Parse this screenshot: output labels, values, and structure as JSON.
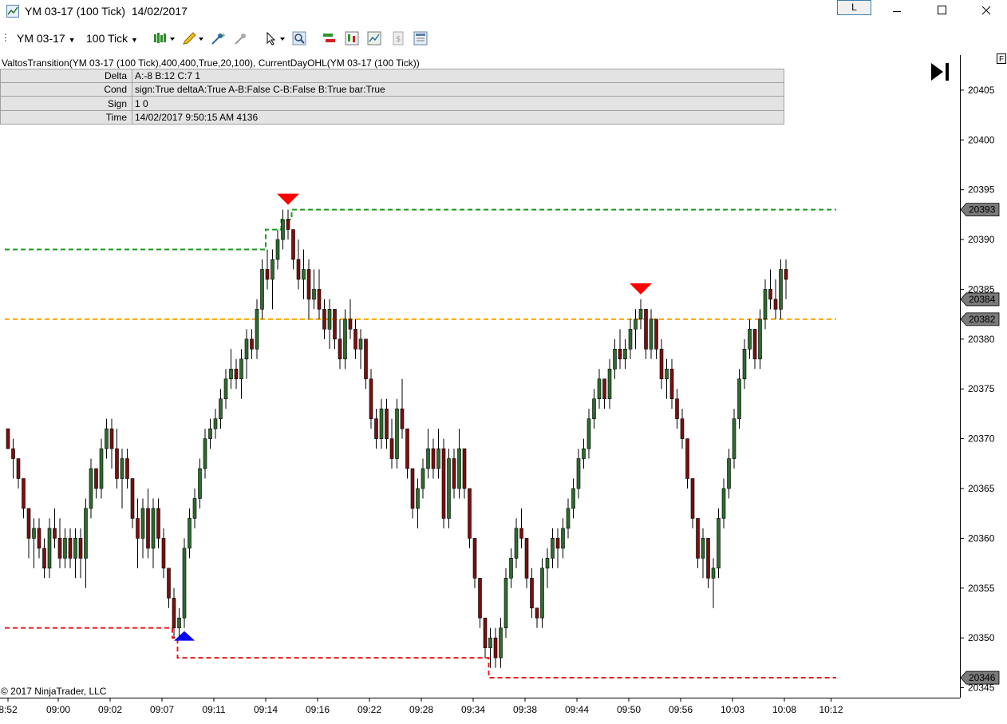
{
  "window": {
    "title": "YM 03-17 (100 Tick)  14/02/2017",
    "button_l": "L"
  },
  "toolbar": {
    "instrument": "YM 03-17",
    "interval": "100 Tick"
  },
  "chart": {
    "indicator_header": "ValtosTransition(YM 03-17 (100 Tick),400,400,True,20,100), CurrentDayOHL(YM 03-17 (100 Tick))",
    "info_table": [
      {
        "label": "Delta",
        "value": "A:-8 B:12 C:7 1"
      },
      {
        "label": "Cond",
        "value": "sign:True deltaA:True A-B:False C-B:False B:True bar:True"
      },
      {
        "label": "Sign",
        "value": "1 0"
      },
      {
        "label": "Time",
        "value": "14/02/2017 9:50:15 AM 4136"
      }
    ],
    "copyright": "© 2017 NinjaTrader, LLC",
    "corner_label": "F",
    "colors": {
      "up": "#2e6b2e",
      "down": "#7a0f0f",
      "high": "#1a9a1a",
      "mid": "#ffa500",
      "low": "#e81a1a",
      "down_arrow": "#ff0000",
      "up_arrow": "#0000ff"
    }
  },
  "chart_data": {
    "type": "candlestick",
    "ylim": [
      20344,
      20409
    ],
    "y_ticks": [
      20345,
      20350,
      20355,
      20360,
      20365,
      20370,
      20375,
      20380,
      20385,
      20390,
      20395,
      20400,
      20405
    ],
    "x_tick_labels": [
      "8:52",
      "09:00",
      "09:02",
      "09:07",
      "09:11",
      "09:14",
      "09:16",
      "09:22",
      "09:28",
      "09:34",
      "09:38",
      "09:44",
      "09:50",
      "09:56",
      "10:03",
      "10:08",
      "10:12"
    ],
    "price_markers": [
      20393,
      20384,
      20382,
      20346
    ],
    "levels": [
      {
        "name": "current-day-high",
        "segments": [
          [
            0,
            50,
            20389
          ],
          [
            50,
            53,
            20391
          ],
          [
            53,
            55,
            20392
          ],
          [
            55,
            160,
            20393
          ]
        ]
      },
      {
        "name": "current-day-open",
        "segments": [
          [
            0,
            160,
            20382
          ]
        ]
      },
      {
        "name": "current-day-low",
        "segments": [
          [
            0,
            32,
            20351
          ],
          [
            32,
            33,
            20350
          ],
          [
            33,
            93,
            20348
          ],
          [
            93,
            160,
            20346
          ]
        ]
      }
    ],
    "markers": [
      {
        "type": "down",
        "bar": 54
      },
      {
        "type": "up",
        "bar": 34
      },
      {
        "type": "down",
        "bar": 122
      }
    ],
    "bars": [
      [
        20371,
        20371,
        20369,
        20369
      ],
      [
        20369,
        20370,
        20366,
        20368
      ],
      [
        20368,
        20368,
        20365,
        20366
      ],
      [
        20366,
        20366,
        20362,
        20363
      ],
      [
        20363,
        20363,
        20358,
        20360
      ],
      [
        20360,
        20362,
        20357,
        20361
      ],
      [
        20361,
        20362,
        20358,
        20359
      ],
      [
        20359,
        20360,
        20356,
        20357
      ],
      [
        20357,
        20362,
        20356,
        20361
      ],
      [
        20361,
        20363,
        20359,
        20360
      ],
      [
        20360,
        20362,
        20357,
        20358
      ],
      [
        20358,
        20361,
        20357,
        20360
      ],
      [
        20360,
        20361,
        20357,
        20358
      ],
      [
        20358,
        20361,
        20356,
        20360
      ],
      [
        20360,
        20361,
        20356,
        20358
      ],
      [
        20358,
        20364,
        20355,
        20363
      ],
      [
        20363,
        20368,
        20362,
        20367
      ],
      [
        20367,
        20367,
        20364,
        20365
      ],
      [
        20365,
        20370,
        20364,
        20369
      ],
      [
        20369,
        20372,
        20368,
        20371
      ],
      [
        20371,
        20372,
        20367,
        20369
      ],
      [
        20369,
        20371,
        20365,
        20366
      ],
      [
        20366,
        20369,
        20363,
        20368
      ],
      [
        20368,
        20369,
        20365,
        20366
      ],
      [
        20366,
        20366,
        20361,
        20362
      ],
      [
        20362,
        20364,
        20357,
        20360
      ],
      [
        20360,
        20364,
        20358,
        20363
      ],
      [
        20363,
        20365,
        20358,
        20359
      ],
      [
        20359,
        20364,
        20357,
        20363
      ],
      [
        20363,
        20364,
        20359,
        20360
      ],
      [
        20360,
        20361,
        20356,
        20357
      ],
      [
        20357,
        20357,
        20353,
        20354
      ],
      [
        20354,
        20355,
        20350,
        20351
      ],
      [
        20351,
        20353,
        20350,
        20352
      ],
      [
        20352,
        20360,
        20351,
        20359
      ],
      [
        20359,
        20363,
        20358,
        20362
      ],
      [
        20362,
        20365,
        20361,
        20364
      ],
      [
        20364,
        20368,
        20363,
        20367
      ],
      [
        20367,
        20371,
        20366,
        20370
      ],
      [
        20370,
        20372,
        20369,
        20371
      ],
      [
        20371,
        20373,
        20370,
        20372
      ],
      [
        20372,
        20375,
        20371,
        20374
      ],
      [
        20374,
        20377,
        20373,
        20376
      ],
      [
        20376,
        20379,
        20375,
        20377
      ],
      [
        20377,
        20378,
        20375,
        20376
      ],
      [
        20376,
        20379,
        20374,
        20378
      ],
      [
        20378,
        20381,
        20376,
        20380
      ],
      [
        20380,
        20381,
        20378,
        20379
      ],
      [
        20379,
        20384,
        20378,
        20383
      ],
      [
        20383,
        20388,
        20382,
        20387
      ],
      [
        20387,
        20389,
        20385,
        20386
      ],
      [
        20386,
        20389,
        20383,
        20388
      ],
      [
        20388,
        20391,
        20387,
        20390
      ],
      [
        20390,
        20393,
        20389,
        20392
      ],
      [
        20392,
        20393,
        20390,
        20391
      ],
      [
        20391,
        20391,
        20387,
        20388
      ],
      [
        20388,
        20390,
        20385,
        20386
      ],
      [
        20386,
        20389,
        20384,
        20387
      ],
      [
        20387,
        20388,
        20382,
        20384
      ],
      [
        20384,
        20387,
        20383,
        20385
      ],
      [
        20385,
        20387,
        20382,
        20383
      ],
      [
        20383,
        20384,
        20380,
        20381
      ],
      [
        20381,
        20384,
        20379,
        20383
      ],
      [
        20383,
        20383,
        20379,
        20380
      ],
      [
        20380,
        20382,
        20377,
        20378
      ],
      [
        20378,
        20383,
        20377,
        20382
      ],
      [
        20382,
        20384,
        20380,
        20381
      ],
      [
        20381,
        20382,
        20378,
        20379
      ],
      [
        20379,
        20381,
        20377,
        20380
      ],
      [
        20380,
        20380,
        20375,
        20376
      ],
      [
        20376,
        20377,
        20371,
        20372
      ],
      [
        20372,
        20373,
        20369,
        20370
      ],
      [
        20370,
        20374,
        20369,
        20373
      ],
      [
        20373,
        20374,
        20369,
        20370
      ],
      [
        20370,
        20372,
        20367,
        20368
      ],
      [
        20368,
        20374,
        20367,
        20373
      ],
      [
        20373,
        20376,
        20370,
        20371
      ],
      [
        20371,
        20371,
        20366,
        20367
      ],
      [
        20367,
        20367,
        20362,
        20363
      ],
      [
        20363,
        20366,
        20361,
        20365
      ],
      [
        20365,
        20368,
        20364,
        20367
      ],
      [
        20367,
        20371,
        20366,
        20369
      ],
      [
        20369,
        20370,
        20366,
        20367
      ],
      [
        20367,
        20371,
        20366,
        20369
      ],
      [
        20369,
        20370,
        20361,
        20362
      ],
      [
        20362,
        20369,
        20361,
        20368
      ],
      [
        20368,
        20369,
        20364,
        20365
      ],
      [
        20365,
        20371,
        20364,
        20369
      ],
      [
        20369,
        20369,
        20364,
        20365
      ],
      [
        20365,
        20365,
        20359,
        20360
      ],
      [
        20360,
        20360,
        20355,
        20356
      ],
      [
        20356,
        20356,
        20351,
        20352
      ],
      [
        20352,
        20352,
        20348,
        20349
      ],
      [
        20349,
        20351,
        20347,
        20350
      ],
      [
        20350,
        20351,
        20347,
        20348
      ],
      [
        20348,
        20352,
        20347,
        20351
      ],
      [
        20351,
        20357,
        20350,
        20356
      ],
      [
        20356,
        20359,
        20355,
        20358
      ],
      [
        20358,
        20362,
        20357,
        20361
      ],
      [
        20361,
        20363,
        20359,
        20360
      ],
      [
        20360,
        20360,
        20355,
        20356
      ],
      [
        20356,
        20357,
        20352,
        20353
      ],
      [
        20353,
        20353,
        20351,
        20352
      ],
      [
        20352,
        20358,
        20351,
        20357
      ],
      [
        20357,
        20359,
        20355,
        20358
      ],
      [
        20358,
        20361,
        20357,
        20360
      ],
      [
        20360,
        20361,
        20357,
        20359
      ],
      [
        20359,
        20362,
        20358,
        20361
      ],
      [
        20361,
        20364,
        20360,
        20363
      ],
      [
        20363,
        20366,
        20362,
        20365
      ],
      [
        20365,
        20369,
        20364,
        20368
      ],
      [
        20368,
        20370,
        20367,
        20369
      ],
      [
        20369,
        20373,
        20368,
        20372
      ],
      [
        20372,
        20375,
        20371,
        20374
      ],
      [
        20374,
        20377,
        20373,
        20376
      ],
      [
        20376,
        20376,
        20373,
        20374
      ],
      [
        20374,
        20378,
        20373,
        20377
      ],
      [
        20377,
        20380,
        20376,
        20379
      ],
      [
        20379,
        20381,
        20377,
        20378
      ],
      [
        20378,
        20380,
        20377,
        20379
      ],
      [
        20379,
        20382,
        20378,
        20381
      ],
      [
        20381,
        20383,
        20379,
        20382
      ],
      [
        20382,
        20384,
        20381,
        20383
      ],
      [
        20383,
        20383,
        20378,
        20379
      ],
      [
        20379,
        20383,
        20378,
        20382
      ],
      [
        20382,
        20382,
        20378,
        20379
      ],
      [
        20379,
        20380,
        20375,
        20376
      ],
      [
        20376,
        20378,
        20374,
        20377
      ],
      [
        20377,
        20378,
        20373,
        20374
      ],
      [
        20374,
        20375,
        20371,
        20372
      ],
      [
        20372,
        20373,
        20369,
        20370
      ],
      [
        20370,
        20370,
        20365,
        20366
      ],
      [
        20366,
        20366,
        20361,
        20362
      ],
      [
        20362,
        20362,
        20357,
        20358
      ],
      [
        20358,
        20361,
        20356,
        20360
      ],
      [
        20360,
        20360,
        20355,
        20356
      ],
      [
        20356,
        20358,
        20353,
        20357
      ],
      [
        20357,
        20363,
        20356,
        20362
      ],
      [
        20362,
        20366,
        20361,
        20365
      ],
      [
        20365,
        20369,
        20364,
        20368
      ],
      [
        20368,
        20373,
        20367,
        20372
      ],
      [
        20372,
        20377,
        20371,
        20376
      ],
      [
        20376,
        20380,
        20375,
        20379
      ],
      [
        20379,
        20382,
        20378,
        20381
      ],
      [
        20381,
        20381,
        20377,
        20378
      ],
      [
        20378,
        20383,
        20377,
        20382
      ],
      [
        20382,
        20386,
        20381,
        20385
      ],
      [
        20385,
        20387,
        20383,
        20384
      ],
      [
        20384,
        20386,
        20382,
        20383
      ],
      [
        20383,
        20388,
        20382,
        20387
      ],
      [
        20387,
        20388,
        20384,
        20386
      ]
    ]
  }
}
